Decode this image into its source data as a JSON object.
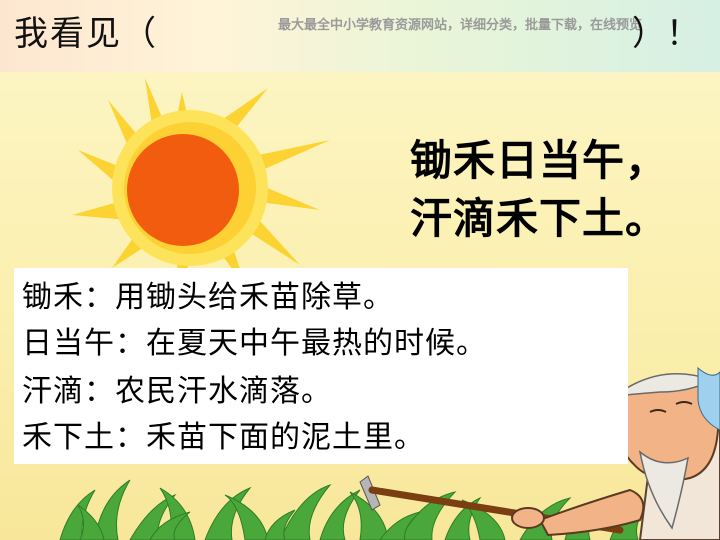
{
  "header": {
    "title": "我看见（",
    "closing": "）！",
    "watermark": "最大最全中小学教育资源网站，详细分类，批量下载，在线预览"
  },
  "poem": {
    "line1": "锄禾日当午，",
    "line2": "汗滴禾下土。"
  },
  "definitions": [
    "锄禾：用锄头给禾苗除草。",
    "日当午：在夏天中午最热的时候。",
    "汗滴：农民汗水滴落。",
    "禾下土：禾苗下面的泥土里。"
  ],
  "colors": {
    "sun_core": "#f25c0f",
    "sun_rays": "#fcd22b",
    "background": "#fbf0b0",
    "grass": "#4aa83a"
  }
}
